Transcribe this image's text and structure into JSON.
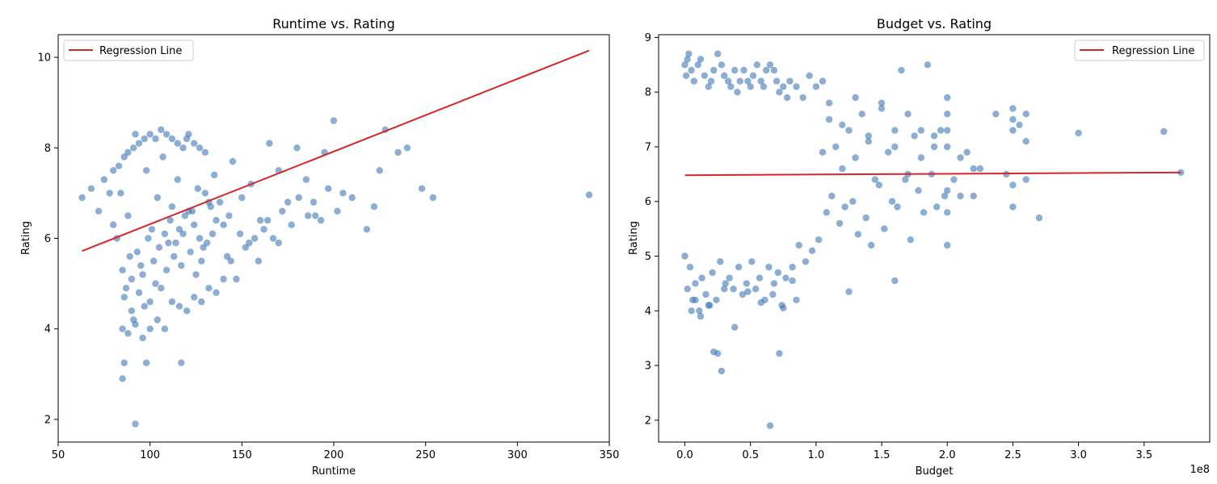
{
  "chart_data": [
    {
      "type": "scatter",
      "title": "Runtime vs. Rating",
      "xlabel": "Runtime",
      "ylabel": "Rating",
      "xlim": [
        50,
        350
      ],
      "ylim": [
        1.5,
        10.5
      ],
      "xticks": [
        50,
        100,
        150,
        200,
        250,
        300,
        350
      ],
      "yticks": [
        2,
        4,
        6,
        8,
        10
      ],
      "xticklabels": [
        "50",
        "100",
        "150",
        "200",
        "250",
        "300",
        "350"
      ],
      "yticklabels": [
        "2",
        "4",
        "6",
        "8",
        "10"
      ],
      "grid": false,
      "legend": {
        "position": "top-left",
        "entries": [
          "Regression Line"
        ]
      },
      "colors": {
        "points": "#3d78b4",
        "line": "#d62728"
      },
      "regression_line": {
        "name": "Regression Line",
        "x": [
          63,
          339
        ],
        "y": [
          5.72,
          10.15
        ]
      },
      "series": [
        {
          "type": "scatter",
          "x": [
            84,
            88,
            92,
            95,
            98,
            101,
            104,
            107,
            110,
            112,
            115,
            118,
            120,
            123,
            126,
            129,
            132,
            135,
            140,
            145,
            150,
            155,
            160,
            165,
            170,
            175,
            180,
            185,
            190,
            195,
            200,
            205,
            210,
            218,
            222,
            225,
            228,
            235,
            240,
            248,
            254,
            339,
            82,
            85,
            86,
            87,
            89,
            90,
            90,
            91,
            93,
            94,
            96,
            97,
            99,
            100,
            102,
            103,
            105,
            106,
            108,
            109,
            111,
            113,
            114,
            116,
            117,
            119,
            121,
            122,
            124,
            125,
            127,
            128,
            130,
            131,
            133,
            134,
            136,
            138,
            142,
            143,
            147,
            149,
            152,
            154,
            157,
            159,
            162,
            164,
            167,
            170,
            172,
            177,
            181,
            186,
            189,
            193,
            197,
            202,
            63,
            68,
            72,
            75,
            78,
            80,
            80,
            83,
            86,
            88,
            91,
            94,
            97,
            100,
            103,
            106,
            109,
            112,
            115,
            118,
            121,
            124,
            127,
            130,
            85,
            88,
            92,
            96,
            100,
            104,
            108,
            112,
            116,
            120,
            124,
            128,
            132,
            136,
            140,
            144
          ],
          "y": [
            7.0,
            6.5,
            8.3,
            5.4,
            7.5,
            6.2,
            6.9,
            7.8,
            5.9,
            6.7,
            7.3,
            6.1,
            8.2,
            6.6,
            7.1,
            5.8,
            6.8,
            7.4,
            6.3,
            7.7,
            6.9,
            7.2,
            6.4,
            8.1,
            7.5,
            6.8,
            8.0,
            7.3,
            6.5,
            7.9,
            8.6,
            7.0,
            6.9,
            6.2,
            6.7,
            7.5,
            8.4,
            7.9,
            8.0,
            7.1,
            6.9,
            6.96,
            6.0,
            5.3,
            4.7,
            4.9,
            5.6,
            4.4,
            5.1,
            4.2,
            5.7,
            4.8,
            5.2,
            4.5,
            6.0,
            4.6,
            5.5,
            5.0,
            5.8,
            4.9,
            6.1,
            5.3,
            6.4,
            5.6,
            5.9,
            6.2,
            5.4,
            6.5,
            6.6,
            5.7,
            6.3,
            5.2,
            6.0,
            5.5,
            7.0,
            5.9,
            6.7,
            6.1,
            6.4,
            6.8,
            5.6,
            6.5,
            5.1,
            6.1,
            5.8,
            5.9,
            6.0,
            5.5,
            6.2,
            6.4,
            6.0,
            5.9,
            6.6,
            6.3,
            6.9,
            6.5,
            6.8,
            6.4,
            7.1,
            6.6,
            6.9,
            7.1,
            6.6,
            7.3,
            7.0,
            7.5,
            6.3,
            7.6,
            7.8,
            7.9,
            8.0,
            8.1,
            8.2,
            8.3,
            8.2,
            8.4,
            8.3,
            8.2,
            8.1,
            8.0,
            8.3,
            8.1,
            8.0,
            7.9,
            4.0,
            3.9,
            4.1,
            3.8,
            4.0,
            4.2,
            4.0,
            4.6,
            4.5,
            4.4,
            4.7,
            4.6,
            4.9,
            4.8,
            5.1,
            5.5
          ]
        },
        {
          "type": "scatter",
          "x": [
            85,
            86,
            92,
            98,
            117
          ],
          "y": [
            2.9,
            3.25,
            1.9,
            3.25,
            3.25
          ]
        }
      ]
    },
    {
      "type": "scatter",
      "title": "Budget vs. Rating",
      "xlabel": "Budget",
      "ylabel": "Rating",
      "x_scale_note": "1e8",
      "xlim": [
        -0.2,
        4.0
      ],
      "ylim": [
        1.6,
        9.05
      ],
      "xticks": [
        0.0,
        0.5,
        1.0,
        1.5,
        2.0,
        2.5,
        3.0,
        3.5
      ],
      "yticks": [
        2,
        3,
        4,
        5,
        6,
        7,
        8,
        9
      ],
      "xticklabels": [
        "0.0",
        "0.5",
        "1.0",
        "1.5",
        "2.0",
        "2.5",
        "3.0",
        "3.5"
      ],
      "yticklabels": [
        "2",
        "3",
        "4",
        "5",
        "6",
        "7",
        "8",
        "9"
      ],
      "grid": false,
      "legend": {
        "position": "top-right",
        "entries": [
          "Regression Line"
        ]
      },
      "colors": {
        "points": "#3d78b4",
        "line": "#d62728"
      },
      "regression_line": {
        "name": "Regression Line",
        "x": [
          0.0,
          3.78
        ],
        "y": [
          6.48,
          6.53
        ]
      },
      "series": [
        {
          "type": "scatter",
          "x": [
            0.0,
            0.01,
            0.02,
            0.03,
            0.05,
            0.07,
            0.1,
            0.12,
            0.15,
            0.18,
            0.2,
            0.22,
            0.25,
            0.28,
            0.3,
            0.33,
            0.35,
            0.38,
            0.4,
            0.42,
            0.45,
            0.48,
            0.5,
            0.52,
            0.55,
            0.58,
            0.6,
            0.62,
            0.65,
            0.68,
            0.7,
            0.72,
            0.75,
            0.78,
            0.8,
            0.85,
            0.9,
            0.95,
            1.0,
            1.05,
            0.0,
            0.02,
            0.04,
            0.06,
            0.08,
            0.11,
            0.13,
            0.16,
            0.19,
            0.21,
            0.24,
            0.27,
            0.31,
            0.34,
            0.37,
            0.41,
            0.44,
            0.47,
            0.51,
            0.54,
            0.57,
            0.61,
            0.64,
            0.67,
            0.71,
            0.74,
            0.77,
            0.82,
            0.87,
            0.92,
            0.97,
            1.02
          ],
          "y": [
            8.5,
            8.3,
            8.6,
            8.7,
            8.4,
            8.2,
            8.5,
            8.6,
            8.3,
            8.1,
            8.2,
            8.4,
            8.7,
            8.5,
            8.3,
            8.2,
            8.1,
            8.4,
            8.0,
            8.2,
            8.4,
            8.2,
            8.1,
            8.3,
            8.5,
            8.2,
            8.1,
            8.4,
            8.5,
            8.4,
            8.2,
            8.0,
            8.1,
            7.9,
            8.2,
            8.1,
            7.9,
            8.3,
            8.1,
            8.2,
            5.0,
            4.4,
            4.8,
            4.2,
            4.5,
            4.0,
            4.6,
            4.3,
            4.1,
            4.7,
            4.2,
            4.9,
            4.5,
            4.6,
            4.4,
            4.8,
            4.3,
            4.5,
            4.9,
            4.4,
            4.6,
            4.2,
            4.8,
            4.3,
            4.7,
            4.1,
            4.6,
            4.8,
            5.2,
            4.9,
            5.1,
            5.3
          ]
        },
        {
          "type": "scatter",
          "x": [
            1.05,
            1.1,
            1.15,
            1.2,
            1.25,
            1.3,
            1.35,
            1.4,
            1.45,
            1.5,
            1.55,
            1.6,
            1.65,
            1.7,
            1.75,
            1.8,
            1.85,
            1.9,
            1.95,
            2.0,
            2.05,
            2.1,
            2.15,
            2.2,
            2.25,
            2.37,
            2.45,
            2.5,
            2.55,
            2.6,
            2.7,
            3.0,
            3.65,
            3.78,
            1.08,
            1.12,
            1.18,
            1.22,
            1.28,
            1.32,
            1.38,
            1.42,
            1.48,
            1.52,
            1.58,
            1.62,
            1.68,
            1.72,
            1.78,
            1.82,
            1.88,
            1.92,
            1.98,
            2.0,
            2.0,
            2.0,
            2.0,
            2.0,
            1.1,
            1.2,
            1.3,
            1.4,
            1.5,
            1.6,
            1.7,
            1.8,
            1.9,
            2.0,
            2.1,
            2.2,
            2.5,
            2.5,
            2.5,
            2.5,
            2.6,
            2.6
          ],
          "y": [
            6.9,
            7.5,
            7.0,
            6.6,
            7.3,
            6.8,
            7.6,
            7.1,
            6.4,
            7.7,
            6.9,
            7.3,
            8.4,
            6.5,
            7.2,
            6.8,
            8.5,
            7.0,
            7.3,
            6.2,
            6.4,
            6.8,
            6.9,
            6.1,
            6.6,
            7.6,
            6.5,
            7.7,
            7.4,
            7.6,
            5.7,
            7.25,
            7.28,
            6.53,
            5.8,
            6.1,
            5.6,
            5.9,
            6.0,
            5.4,
            5.7,
            5.2,
            6.3,
            5.5,
            6.0,
            5.9,
            6.4,
            5.3,
            6.2,
            5.8,
            6.5,
            5.9,
            6.1,
            5.8,
            5.2,
            7.9,
            7.3,
            7.0,
            7.8,
            7.4,
            7.9,
            7.2,
            7.8,
            7.0,
            7.6,
            7.3,
            7.2,
            7.6,
            6.1,
            6.6,
            5.9,
            6.3,
            7.3,
            7.5,
            6.4,
            7.1
          ]
        },
        {
          "type": "scatter",
          "x": [
            0.05,
            0.08,
            0.12,
            0.18,
            0.22,
            0.25,
            0.28,
            0.3,
            0.38,
            0.48,
            0.58,
            0.65,
            0.68,
            0.72,
            0.75,
            0.82,
            0.85,
            1.25,
            1.6
          ],
          "y": [
            4.0,
            4.2,
            3.9,
            4.1,
            3.25,
            3.22,
            2.9,
            4.4,
            3.7,
            4.35,
            4.15,
            1.9,
            4.5,
            3.22,
            4.05,
            4.55,
            4.2,
            4.35,
            4.55
          ]
        }
      ]
    }
  ]
}
